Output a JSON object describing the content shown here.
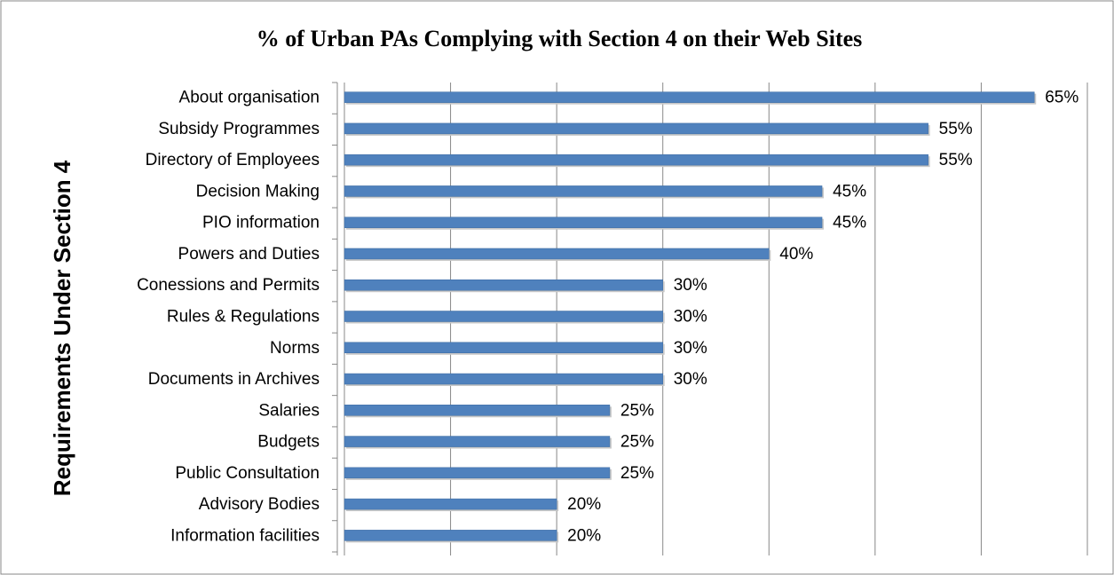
{
  "chart_data": {
    "type": "bar",
    "orientation": "horizontal",
    "title": "% of  Urban PAs Complying with Section 4 on their Web Sites",
    "y_label": "Requirements Under Section 4",
    "categories": [
      "About organisation",
      "Subsidy Programmes",
      "Directory of Employees",
      "Decision Making",
      "PIO information",
      "Powers and Duties",
      "Conessions and Permits",
      "Rules & Regulations",
      "Norms",
      "Documents in Archives",
      "Salaries",
      "Budgets",
      "Public Consultation",
      "Advisory Bodies",
      "Information facilities"
    ],
    "values": [
      65,
      55,
      55,
      45,
      45,
      40,
      30,
      30,
      30,
      30,
      25,
      25,
      25,
      20,
      20
    ],
    "value_labels": [
      "65%",
      "55%",
      "55%",
      "45%",
      "45%",
      "40%",
      "30%",
      "30%",
      "30%",
      "30%",
      "25%",
      "25%",
      "25%",
      "20%",
      "20%"
    ],
    "color": "#4f81bd",
    "xlim": [
      0,
      70
    ],
    "xticks": [
      0,
      10,
      20,
      30,
      40,
      50,
      60,
      70
    ],
    "grid": true
  }
}
